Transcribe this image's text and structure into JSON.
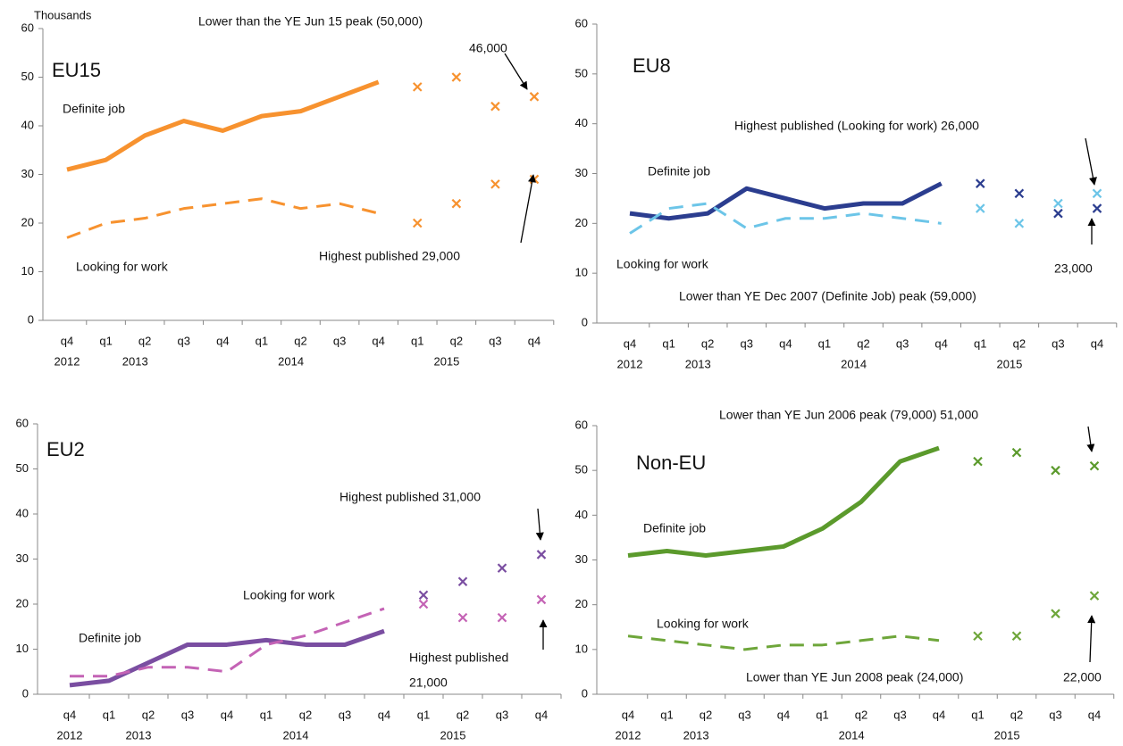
{
  "chart_data": [
    {
      "type": "line",
      "title": "EU15",
      "ylabel": "Thousands",
      "categories": [
        "q4",
        "q1",
        "q2",
        "q3",
        "q4",
        "q1",
        "q2",
        "q3",
        "q4",
        "q1",
        "q2",
        "q3",
        "q4"
      ],
      "category_groups": [
        {
          "label": "2012",
          "count": 1
        },
        {
          "label": "2013",
          "count": 4
        },
        {
          "label": "2014",
          "count": 4
        },
        {
          "label": "2015",
          "count": 4
        }
      ],
      "series": [
        {
          "name": "Definite job",
          "color": "#f7922f",
          "dash": false,
          "values": [
            31,
            33,
            38,
            41,
            39,
            42,
            43,
            46,
            49,
            null,
            null,
            null,
            null
          ],
          "estimates": [
            null,
            null,
            null,
            null,
            null,
            null,
            null,
            null,
            null,
            48,
            50,
            44,
            46
          ]
        },
        {
          "name": "Looking for work",
          "color": "#f7922f",
          "dash": true,
          "values": [
            17,
            20,
            21,
            23,
            24,
            25,
            23,
            24,
            22,
            null,
            null,
            null,
            null
          ],
          "estimates": [
            null,
            null,
            null,
            null,
            null,
            null,
            null,
            null,
            null,
            20,
            24,
            28,
            29
          ]
        }
      ],
      "ylim": [
        0,
        60
      ],
      "yticks": [
        0,
        10,
        20,
        30,
        40,
        50,
        60
      ],
      "annotations": [
        "Lower than the YE Jun 15 peak (50,000)",
        "46,000",
        "Highest published  29,000"
      ]
    },
    {
      "type": "line",
      "title": "EU8",
      "categories": [
        "q4",
        "q1",
        "q2",
        "q3",
        "q4",
        "q1",
        "q2",
        "q3",
        "q4",
        "q1",
        "q2",
        "q3",
        "q4"
      ],
      "category_groups": [
        {
          "label": "2012",
          "count": 1
        },
        {
          "label": "2013",
          "count": 4
        },
        {
          "label": "2014",
          "count": 4
        },
        {
          "label": "2015",
          "count": 4
        }
      ],
      "series": [
        {
          "name": "Definite job",
          "color": "#2b3d8f",
          "dash": false,
          "values": [
            22,
            21,
            22,
            27,
            25,
            23,
            24,
            24,
            28,
            null,
            null,
            null,
            null
          ],
          "estimates": [
            null,
            null,
            null,
            null,
            null,
            null,
            null,
            null,
            null,
            28,
            26,
            22,
            23
          ]
        },
        {
          "name": "Looking for work",
          "color": "#6cc5e8",
          "dash": true,
          "values": [
            18,
            23,
            24,
            19,
            21,
            21,
            22,
            21,
            20,
            null,
            null,
            null,
            null
          ],
          "estimates": [
            null,
            null,
            null,
            null,
            null,
            null,
            null,
            null,
            null,
            23,
            20,
            24,
            26
          ]
        }
      ],
      "ylim": [
        0,
        60
      ],
      "yticks": [
        0,
        10,
        20,
        30,
        40,
        50,
        60
      ],
      "annotations": [
        "Highest published (Looking  for work) 26,000",
        "23,000",
        "Lower than YE Dec 2007 (Definite Job) peak (59,000)"
      ]
    },
    {
      "type": "line",
      "title": "EU2",
      "categories": [
        "q4",
        "q1",
        "q2",
        "q3",
        "q4",
        "q1",
        "q2",
        "q3",
        "q4",
        "q1",
        "q2",
        "q3",
        "q4"
      ],
      "category_groups": [
        {
          "label": "2012",
          "count": 1
        },
        {
          "label": "2013",
          "count": 4
        },
        {
          "label": "2014",
          "count": 4
        },
        {
          "label": "2015",
          "count": 4
        }
      ],
      "series": [
        {
          "name": "Definite job",
          "color": "#7a4ea1",
          "dash": false,
          "values": [
            2,
            3,
            7,
            11,
            11,
            12,
            11,
            11,
            14,
            null,
            null,
            null,
            null
          ],
          "estimates": [
            null,
            null,
            null,
            null,
            null,
            null,
            null,
            null,
            null,
            22,
            25,
            28,
            31
          ]
        },
        {
          "name": "Looking for work",
          "color": "#c463b5",
          "dash": true,
          "values": [
            4,
            4,
            6,
            6,
            5,
            11,
            13,
            16,
            19,
            null,
            null,
            null,
            null
          ],
          "estimates": [
            null,
            null,
            null,
            null,
            null,
            null,
            null,
            null,
            null,
            20,
            17,
            17,
            21
          ]
        }
      ],
      "ylim": [
        0,
        60
      ],
      "yticks": [
        0,
        10,
        20,
        30,
        40,
        50,
        60
      ],
      "annotations": [
        "Highest published  31,000",
        "Highest published",
        "21,000"
      ]
    },
    {
      "type": "line",
      "title": "Non-EU",
      "categories": [
        "q4",
        "q1",
        "q2",
        "q3",
        "q4",
        "q1",
        "q2",
        "q3",
        "q4",
        "q1",
        "q2",
        "q3",
        "q4"
      ],
      "category_groups": [
        {
          "label": "2012",
          "count": 1
        },
        {
          "label": "2013",
          "count": 4
        },
        {
          "label": "2014",
          "count": 4
        },
        {
          "label": "2015",
          "count": 4
        }
      ],
      "series": [
        {
          "name": "Definite job",
          "color": "#5b9a2c",
          "dash": false,
          "values": [
            31,
            32,
            31,
            32,
            33,
            37,
            43,
            52,
            55,
            null,
            null,
            null,
            null
          ],
          "estimates": [
            null,
            null,
            null,
            null,
            null,
            null,
            null,
            null,
            null,
            52,
            54,
            50,
            51
          ]
        },
        {
          "name": "Looking for work",
          "color": "#6ea63a",
          "dash": true,
          "values": [
            13,
            12,
            11,
            10,
            11,
            11,
            12,
            13,
            12,
            null,
            null,
            null,
            null
          ],
          "estimates": [
            null,
            null,
            null,
            null,
            null,
            null,
            null,
            null,
            null,
            13,
            13,
            18,
            22
          ]
        }
      ],
      "ylim": [
        0,
        60
      ],
      "yticks": [
        0,
        10,
        20,
        30,
        40,
        50,
        60
      ],
      "annotations": [
        "Lower than YE Jun 2006 peak (79,000)  51,000",
        "Lower than YE Jun 2008 peak (24,000)",
        "22,000"
      ]
    }
  ]
}
